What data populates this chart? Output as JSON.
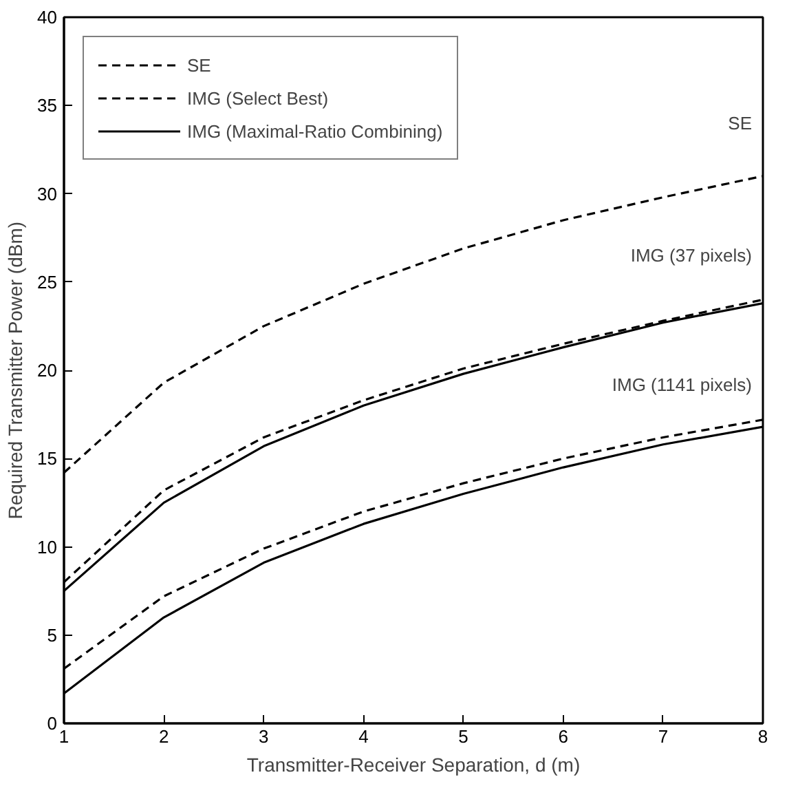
{
  "chart_data": {
    "type": "line",
    "xlabel": "Transmitter-Receiver Separation, d (m)",
    "ylabel": "Required Transmitter Power (dBm)",
    "x": [
      1,
      2,
      3,
      4,
      5,
      6,
      7,
      8
    ],
    "xlim": [
      1,
      8
    ],
    "xticks": [
      1,
      2,
      3,
      4,
      5,
      6,
      7,
      8
    ],
    "ylim": [
      0,
      40
    ],
    "yticks": [
      0,
      5,
      10,
      15,
      20,
      25,
      30,
      35,
      40
    ],
    "grid": false,
    "legend": "top left",
    "marker": "none",
    "series": [
      {
        "name": "SE",
        "color": "#000000",
        "line_style": "dashed",
        "values": [
          14.2,
          19.3,
          22.5,
          24.9,
          26.9,
          28.5,
          29.8,
          31.0
        ]
      },
      {
        "name": "IMG (Select Best)",
        "color": "#000000",
        "line_style": "dashed",
        "values": [
          8.0,
          13.2,
          16.2,
          18.3,
          20.1,
          21.5,
          22.8,
          24.0
        ]
      },
      {
        "name": "IMG (Maximal-Ratio Combining)",
        "color": "#000000",
        "line_style": "solid",
        "values": [
          7.5,
          12.5,
          15.7,
          18.0,
          19.8,
          21.3,
          22.7,
          23.8
        ]
      },
      {
        "color": "#000000",
        "line_style": "dashed",
        "values": [
          3.1,
          7.2,
          9.9,
          12.0,
          13.6,
          15.0,
          16.2,
          17.2
        ]
      },
      {
        "color": "#000000",
        "line_style": "solid",
        "values": [
          1.7,
          6.0,
          9.1,
          11.3,
          13.0,
          14.5,
          15.8,
          16.8
        ]
      }
    ],
    "annotations": [
      "SE",
      "IMG (37 pixels)",
      "IMG (1141 pixels)"
    ]
  }
}
